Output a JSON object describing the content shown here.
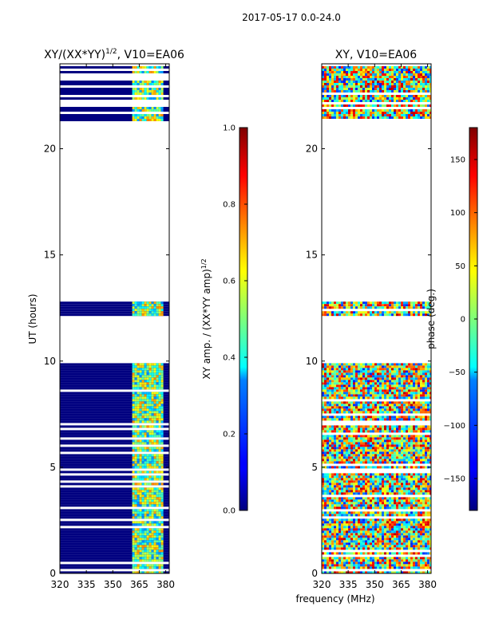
{
  "figure": {
    "suptitle": "2017-05-17 0.0-24.0",
    "shared_xlabel": "frequency (MHz)"
  },
  "chart_data": [
    {
      "type": "heatmap",
      "title": "XY/(XX*YY)^{1/2}, V10=EA06",
      "title_parts": {
        "main": "XY/(XX*YY)",
        "sup": "1/2",
        "tail": ", V10=EA06"
      },
      "ylabel": "UT (hours)",
      "xlabel": "",
      "xlim": [
        320,
        382
      ],
      "ylim": [
        0,
        24
      ],
      "xticks": [
        320,
        335,
        350,
        365,
        380
      ],
      "yticks": [
        0,
        5,
        10,
        15,
        20
      ],
      "quantity": "amplitude",
      "data_time_ranges_hours": [
        [
          0.0,
          9.9
        ],
        [
          12.2,
          12.8
        ],
        [
          21.3,
          24.0
        ]
      ],
      "active_freq_band_mhz": [
        361,
        378
      ],
      "background_level": 0.0,
      "typical_active_level": 0.5,
      "colorbar": {
        "label": "XY amp. / (XX*YY amp)^{1/2}",
        "label_parts": {
          "main": "XY amp. / (XX*YY amp)",
          "sup": "1/2"
        },
        "ticks": [
          "0.0",
          "0.2",
          "0.4",
          "0.6",
          "0.8",
          "1.0"
        ],
        "tick_values": [
          0.0,
          0.2,
          0.4,
          0.6,
          0.8,
          1.0
        ],
        "range": [
          0.0,
          1.0
        ],
        "colormap": "jet"
      }
    },
    {
      "type": "heatmap",
      "title": "XY, V10=EA06",
      "ylabel": "",
      "xlabel": "frequency (MHz)",
      "xlim": [
        320,
        382
      ],
      "ylim": [
        0,
        24
      ],
      "xticks": [
        320,
        335,
        350,
        365,
        380
      ],
      "yticks": [
        0,
        5,
        10,
        15,
        20
      ],
      "quantity": "phase",
      "data_time_ranges_hours": [
        [
          0.0,
          9.9
        ],
        [
          12.2,
          12.8
        ],
        [
          21.3,
          24.0
        ]
      ],
      "colorbar": {
        "label": "phase (deg.)",
        "ticks": [
          "150",
          "100",
          "50",
          "0",
          "−50",
          "−100",
          "−150"
        ],
        "tick_values": [
          150,
          100,
          50,
          0,
          -50,
          -100,
          -150
        ],
        "range": [
          -180,
          180
        ],
        "colormap": "jet"
      }
    }
  ]
}
